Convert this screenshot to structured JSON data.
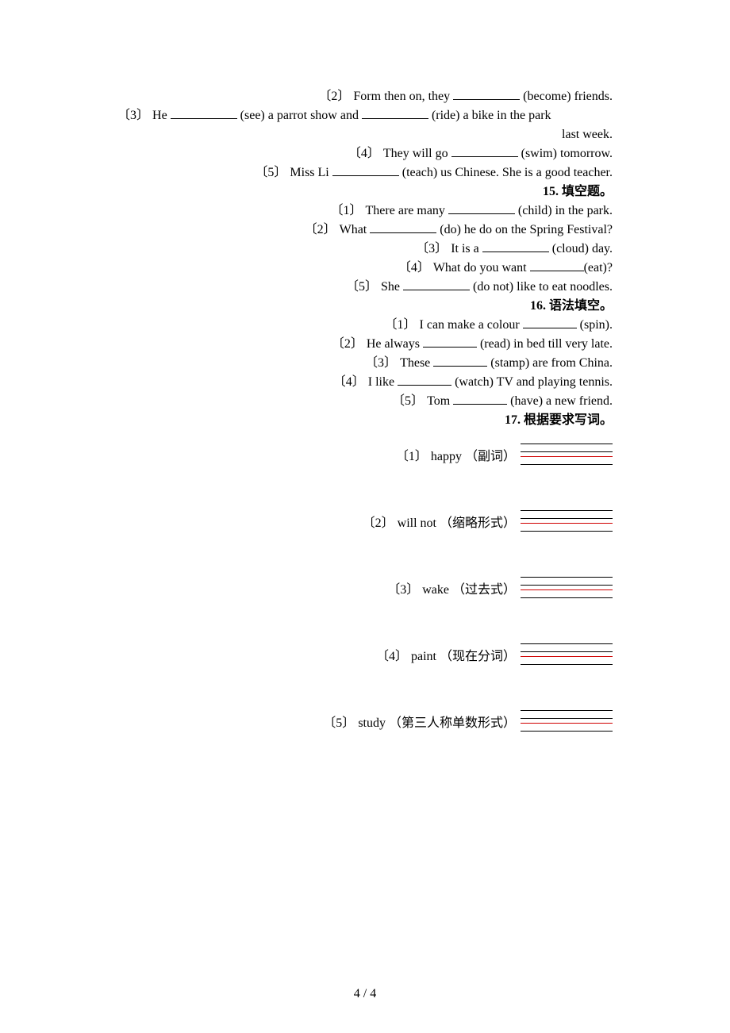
{
  "font": {
    "family": "Times New Roman",
    "size_pt": 12,
    "color": "#000000"
  },
  "colors": {
    "text": "#000000",
    "underline_red": "#d00000",
    "bg": "#ffffff"
  },
  "q14": {
    "items": [
      {
        "n": "〔2〕",
        "pre": "Form then on, they ",
        "hint": "(become)",
        "post": " friends."
      },
      {
        "n": "〔3〕",
        "pre": "He ",
        "mid1_hint": "(see)",
        "mid_text": " a parrot show and ",
        "mid2_hint": "(ride)",
        "tail": " a bike in the park",
        "tail2": "last week."
      },
      {
        "n": "〔4〕",
        "pre": "They will go ",
        "hint": "(swim)",
        "post": " tomorrow."
      },
      {
        "n": "〔5〕",
        "pre": "Miss Li ",
        "hint": "(teach)",
        "post": " us Chinese. She is a good teacher."
      }
    ]
  },
  "q15": {
    "title": "15. 填空题。",
    "items": [
      {
        "n": "〔1〕",
        "pre": "There are many ",
        "hint": "(child)",
        "post": " in the park."
      },
      {
        "n": "〔2〕",
        "pre": "What ",
        "hint": "(do)",
        "post": " he do on the Spring Festival?"
      },
      {
        "n": "〔3〕",
        "pre": "It is a ",
        "hint": "(cloud)",
        "post": " day."
      },
      {
        "n": "〔4〕",
        "pre": "What do you want ",
        "hint": "(eat)",
        "post": "?"
      },
      {
        "n": "〔5〕",
        "pre": "She ",
        "hint": "(do not)",
        "post": " like to eat noodles."
      }
    ]
  },
  "q16": {
    "title": "16. 语法填空。",
    "items": [
      {
        "n": "〔1〕",
        "pre": "I can make a colour ",
        "hint": "(spin)",
        "post": "."
      },
      {
        "n": "〔2〕",
        "pre": "He always ",
        "hint": "(read)",
        "post": " in bed till very late."
      },
      {
        "n": "〔3〕",
        "pre": "These ",
        "hint": "(stamp)",
        "post": " are from China."
      },
      {
        "n": "〔4〕",
        "pre": "I like ",
        "hint": "(watch)",
        "post": " TV and playing tennis."
      },
      {
        "n": "〔5〕",
        "pre": "Tom ",
        "hint": "(have)",
        "post": " a new friend."
      }
    ]
  },
  "q17": {
    "title": "17. 根据要求写词。",
    "items": [
      {
        "n": "〔1〕",
        "word": "happy",
        "req": "（副词）"
      },
      {
        "n": "〔2〕",
        "word": "will not",
        "req": "（缩略形式）"
      },
      {
        "n": "〔3〕",
        "word": "wake",
        "req": "（过去式）"
      },
      {
        "n": "〔4〕",
        "word": "paint",
        "req": "（现在分词）"
      },
      {
        "n": "〔5〕",
        "word": "study",
        "req": "（第三人称单数形式）"
      }
    ]
  },
  "footer": "4 / 4"
}
